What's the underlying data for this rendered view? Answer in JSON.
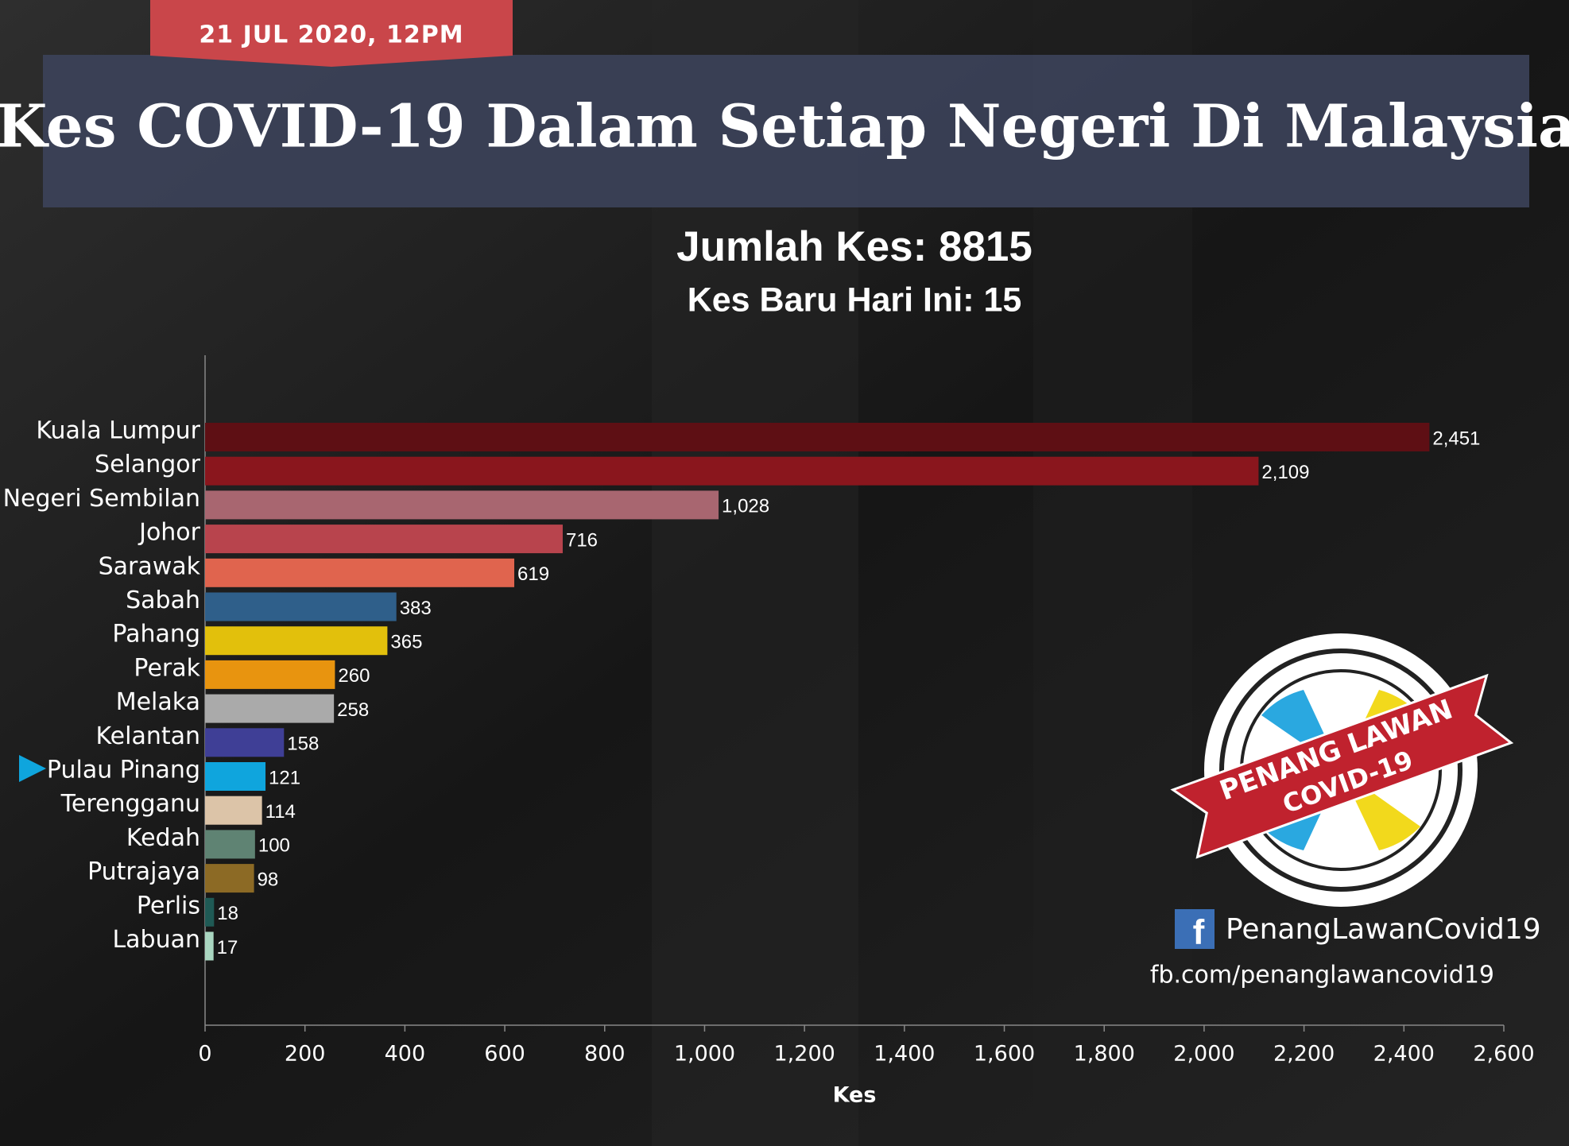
{
  "chart_data": {
    "type": "bar",
    "orientation": "horizontal",
    "date": "21 JUL 2020, 12PM",
    "title": "Kes COVID-19 Dalam Setiap Negeri Di Malaysia",
    "subtitle": "Jumlah Kes: 8815",
    "subtitle_2": "Kes Baru Hari Ini: 15",
    "x_label": "Kes",
    "categories": [
      "Kuala Lumpur",
      "Selangor",
      "Negeri Sembilan",
      "Johor",
      "Sarawak",
      "Sabah",
      "Pahang",
      "Perak",
      "Melaka",
      "Kelantan",
      "Pulau Pinang",
      "Terengganu",
      "Kedah",
      "Putrajaya",
      "Perlis",
      "Labuan"
    ],
    "values": [
      2451,
      2109,
      1028,
      716,
      619,
      383,
      365,
      260,
      258,
      158,
      121,
      114,
      100,
      98,
      18,
      17
    ],
    "value_labels": [
      "2,451",
      "2,109",
      "1,028",
      "716",
      "619",
      "383",
      "365",
      "260",
      "258",
      "158",
      "121",
      "114",
      "100",
      "98",
      "18",
      "17"
    ],
    "colors": [
      "#5e0f14",
      "#8a161d",
      "#a86670",
      "#b8444d",
      "#e0644e",
      "#2f5f8a",
      "#e2c00c",
      "#e8940f",
      "#aaaaaa",
      "#3f3f96",
      "#0fa5dd",
      "#dcc4a8",
      "#5f8373",
      "#8c6a25",
      "#1f5a55",
      "#a9d6c0"
    ],
    "xlim": [
      0,
      2600
    ],
    "xticks": [
      0,
      200,
      400,
      600,
      800,
      {
        "value": 1000,
        "label": "1,000"
      },
      {
        "value": 1200,
        "label": "1,200"
      },
      {
        "value": 1400,
        "label": "1,400"
      },
      {
        "value": 1600,
        "label": "1,600"
      },
      {
        "value": 1800,
        "label": "1,800"
      },
      {
        "value": 2000,
        "label": "2,000"
      },
      {
        "value": 2200,
        "label": "2,200"
      },
      {
        "value": 2400,
        "label": "2,400"
      },
      {
        "value": 2600,
        "label": "2,600"
      }
    ],
    "grid": false
  },
  "logo": {
    "line_1": "PENANG LAWAN",
    "line_2": "COVID-19"
  },
  "social": {
    "icon": "f",
    "page_name": "PenangLawanCovid19",
    "url": "fb.com/penanglawancovid19"
  }
}
